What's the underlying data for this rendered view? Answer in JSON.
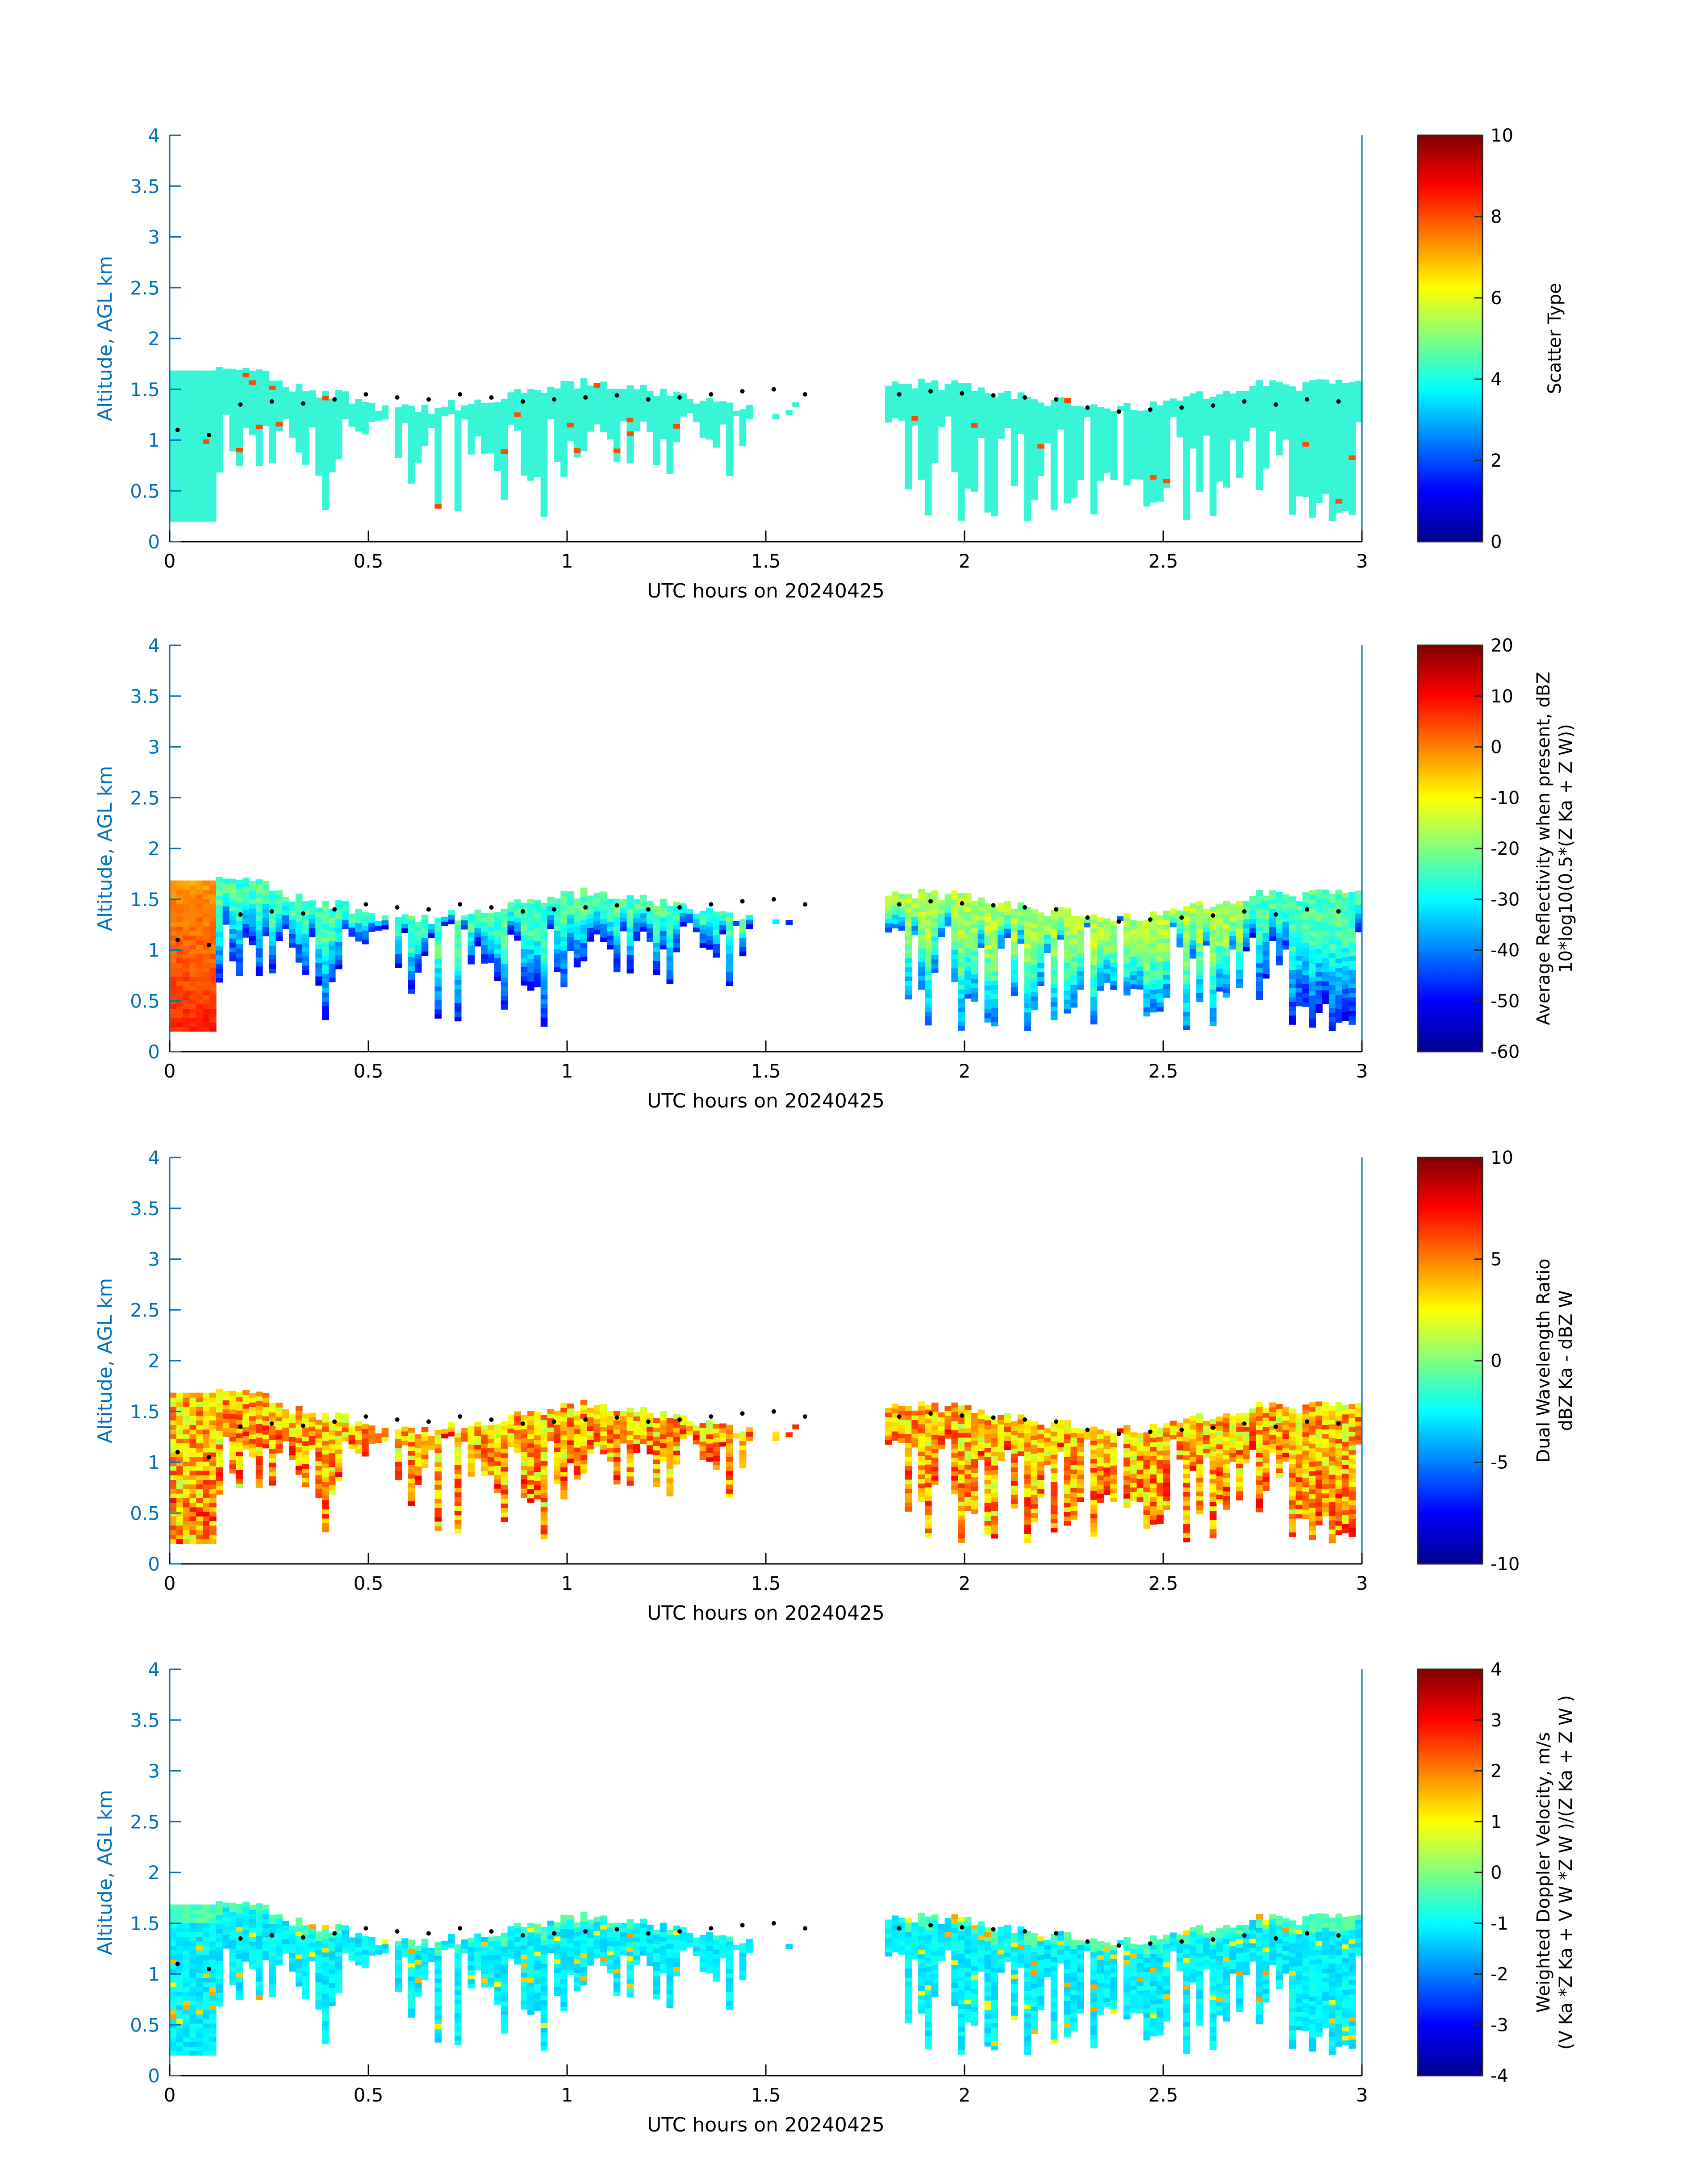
{
  "chart_data": [
    {
      "type": "heatmap",
      "panel_id": "scatter-type",
      "xlabel": "UTC hours on 20240425",
      "ylabel": "Altitude, AGL km",
      "xlim": [
        0,
        3
      ],
      "ylim": [
        0,
        4
      ],
      "xticks": [
        "0",
        "0.5",
        "1",
        "1.5",
        "2",
        "2.5",
        "3"
      ],
      "yticks": [
        "0",
        "0.5",
        "1",
        "1.5",
        "2",
        "2.5",
        "3",
        "3.5",
        "4"
      ],
      "colorbar": {
        "label_lines": [
          "Scatter Type"
        ],
        "clim": [
          0,
          10
        ],
        "ticks": [
          "0",
          "2",
          "4",
          "6",
          "8",
          "10"
        ]
      },
      "field": "scatter",
      "cloud_top_dots_km": [
        1.1,
        1.05,
        1.35,
        1.38,
        1.36,
        1.4,
        1.45,
        1.42,
        1.4,
        1.45,
        1.42,
        1.38,
        1.4,
        1.42,
        1.44,
        1.4,
        1.42,
        1.45,
        1.48,
        1.5,
        1.45,
        1.48,
        1.47,
        1.45,
        1.48,
        1.46,
        1.44,
        1.42,
        1.4,
        1.32,
        1.28,
        1.3,
        1.32,
        1.34,
        1.38,
        1.35,
        1.4,
        1.38
      ]
    },
    {
      "type": "heatmap",
      "panel_id": "reflectivity",
      "xlabel": "UTC hours on 20240425",
      "ylabel": "Altitude, AGL km",
      "xlim": [
        0,
        3
      ],
      "ylim": [
        0,
        4
      ],
      "xticks": [
        "0",
        "0.5",
        "1",
        "1.5",
        "2",
        "2.5",
        "3"
      ],
      "yticks": [
        "0",
        "0.5",
        "1",
        "1.5",
        "2",
        "2.5",
        "3",
        "3.5",
        "4"
      ],
      "colorbar": {
        "label_lines": [
          "Average Reflectivity when present, dBZ",
          "10*log10(0.5*(Z Ka + Z W))"
        ],
        "clim": [
          -60,
          20
        ],
        "ticks": [
          "-60",
          "-50",
          "-40",
          "-30",
          "-20",
          "-10",
          "0",
          "10",
          "20"
        ]
      },
      "field": "reflectivity"
    },
    {
      "type": "heatmap",
      "panel_id": "dwr",
      "xlabel": "UTC hours on 20240425",
      "ylabel": "Altitude, AGL km",
      "xlim": [
        0,
        3
      ],
      "ylim": [
        0,
        4
      ],
      "xticks": [
        "0",
        "0.5",
        "1",
        "1.5",
        "2",
        "2.5",
        "3"
      ],
      "yticks": [
        "0",
        "0.5",
        "1",
        "1.5",
        "2",
        "2.5",
        "3",
        "3.5",
        "4"
      ],
      "colorbar": {
        "label_lines": [
          "Dual Wavelength Ratio",
          "dBZ Ka - dBZ W"
        ],
        "clim": [
          -10,
          10
        ],
        "ticks": [
          "-10",
          "-5",
          "0",
          "5",
          "10"
        ]
      },
      "field": "dwr"
    },
    {
      "type": "heatmap",
      "panel_id": "doppler",
      "xlabel": "UTC hours on 20240425",
      "ylabel": "Altitude, AGL km",
      "xlim": [
        0,
        3
      ],
      "ylim": [
        0,
        4
      ],
      "xticks": [
        "0",
        "0.5",
        "1",
        "1.5",
        "2",
        "2.5",
        "3"
      ],
      "yticks": [
        "0",
        "0.5",
        "1",
        "1.5",
        "2",
        "2.5",
        "3",
        "3.5",
        "4"
      ],
      "colorbar": {
        "label_lines": [
          "Weighted Doppler Velocity, m/s",
          "(V Ka *Z Ka + V W *Z W )/(Z Ka + Z W )"
        ],
        "clim": [
          -4,
          4
        ],
        "ticks": [
          "-4",
          "-3",
          "-2",
          "-1",
          "0",
          "1",
          "2",
          "3",
          "4"
        ]
      },
      "field": "doppler"
    }
  ]
}
